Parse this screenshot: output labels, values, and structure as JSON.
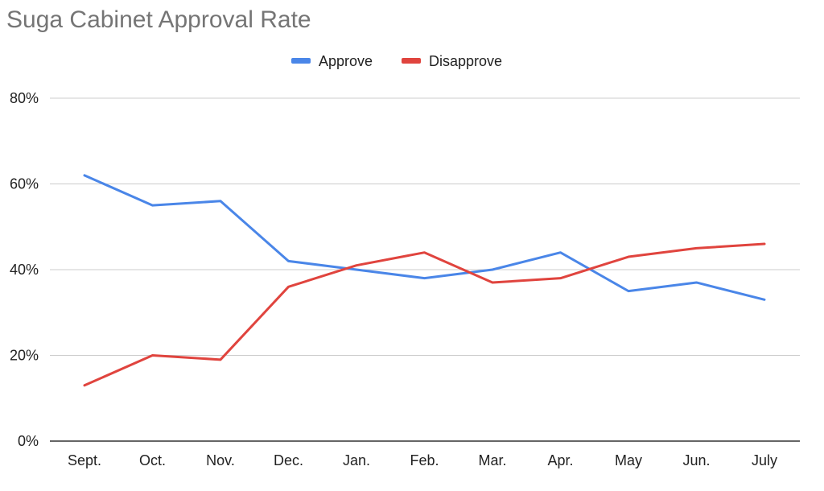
{
  "chart_data": {
    "type": "line",
    "title": "Suga Cabinet Approval Rate",
    "xlabel": "",
    "ylabel": "",
    "categories": [
      "Sept.",
      "Oct.",
      "Nov.",
      "Dec.",
      "Jan.",
      "Feb.",
      "Mar.",
      "Apr.",
      "May",
      "Jun.",
      "July"
    ],
    "ylim": [
      0,
      80
    ],
    "yticks": [
      0,
      20,
      40,
      60,
      80
    ],
    "ytick_labels": [
      "0%",
      "20%",
      "40%",
      "60%",
      "80%"
    ],
    "grid": true,
    "legend_position": "top-center",
    "series": [
      {
        "name": "Approve",
        "color": "#4A86E8",
        "values": [
          62,
          55,
          56,
          42,
          40,
          38,
          40,
          44,
          35,
          37,
          33
        ]
      },
      {
        "name": "Disapprove",
        "color": "#E0443E",
        "values": [
          13,
          20,
          19,
          36,
          41,
          44,
          37,
          38,
          43,
          45,
          46
        ]
      }
    ]
  }
}
